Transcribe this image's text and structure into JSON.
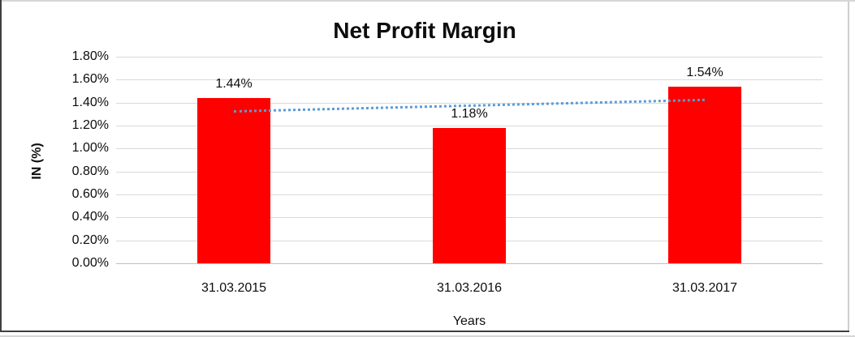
{
  "chart_data": {
    "type": "bar",
    "title": "Net Profit Margin",
    "categories": [
      "31.03.2015",
      "31.03.2016",
      "31.03.2017"
    ],
    "values": [
      1.44,
      1.18,
      1.54
    ],
    "value_labels": [
      "1.44%",
      "1.18%",
      "1.54%"
    ],
    "xlabel": "Years",
    "ylabel": "IN (%)",
    "ylim": [
      0,
      1.8
    ],
    "ytick_labels": [
      "1.80%",
      "1.60%",
      "1.40%",
      "1.20%",
      "1.00%",
      "0.80%",
      "0.60%",
      "0.40%",
      "0.20%",
      "0.00%"
    ],
    "grid": true,
    "legend": "none",
    "bar_color": "#FF0000",
    "gridline_color": "#D9D9D9",
    "axis_line_color": "#BFBFBF",
    "text_color": "#0D0D0D",
    "trendline": {
      "type": "linear",
      "style": "dotted",
      "color": "#5B9BD5",
      "start_value": 1.337,
      "end_value": 1.437
    }
  }
}
